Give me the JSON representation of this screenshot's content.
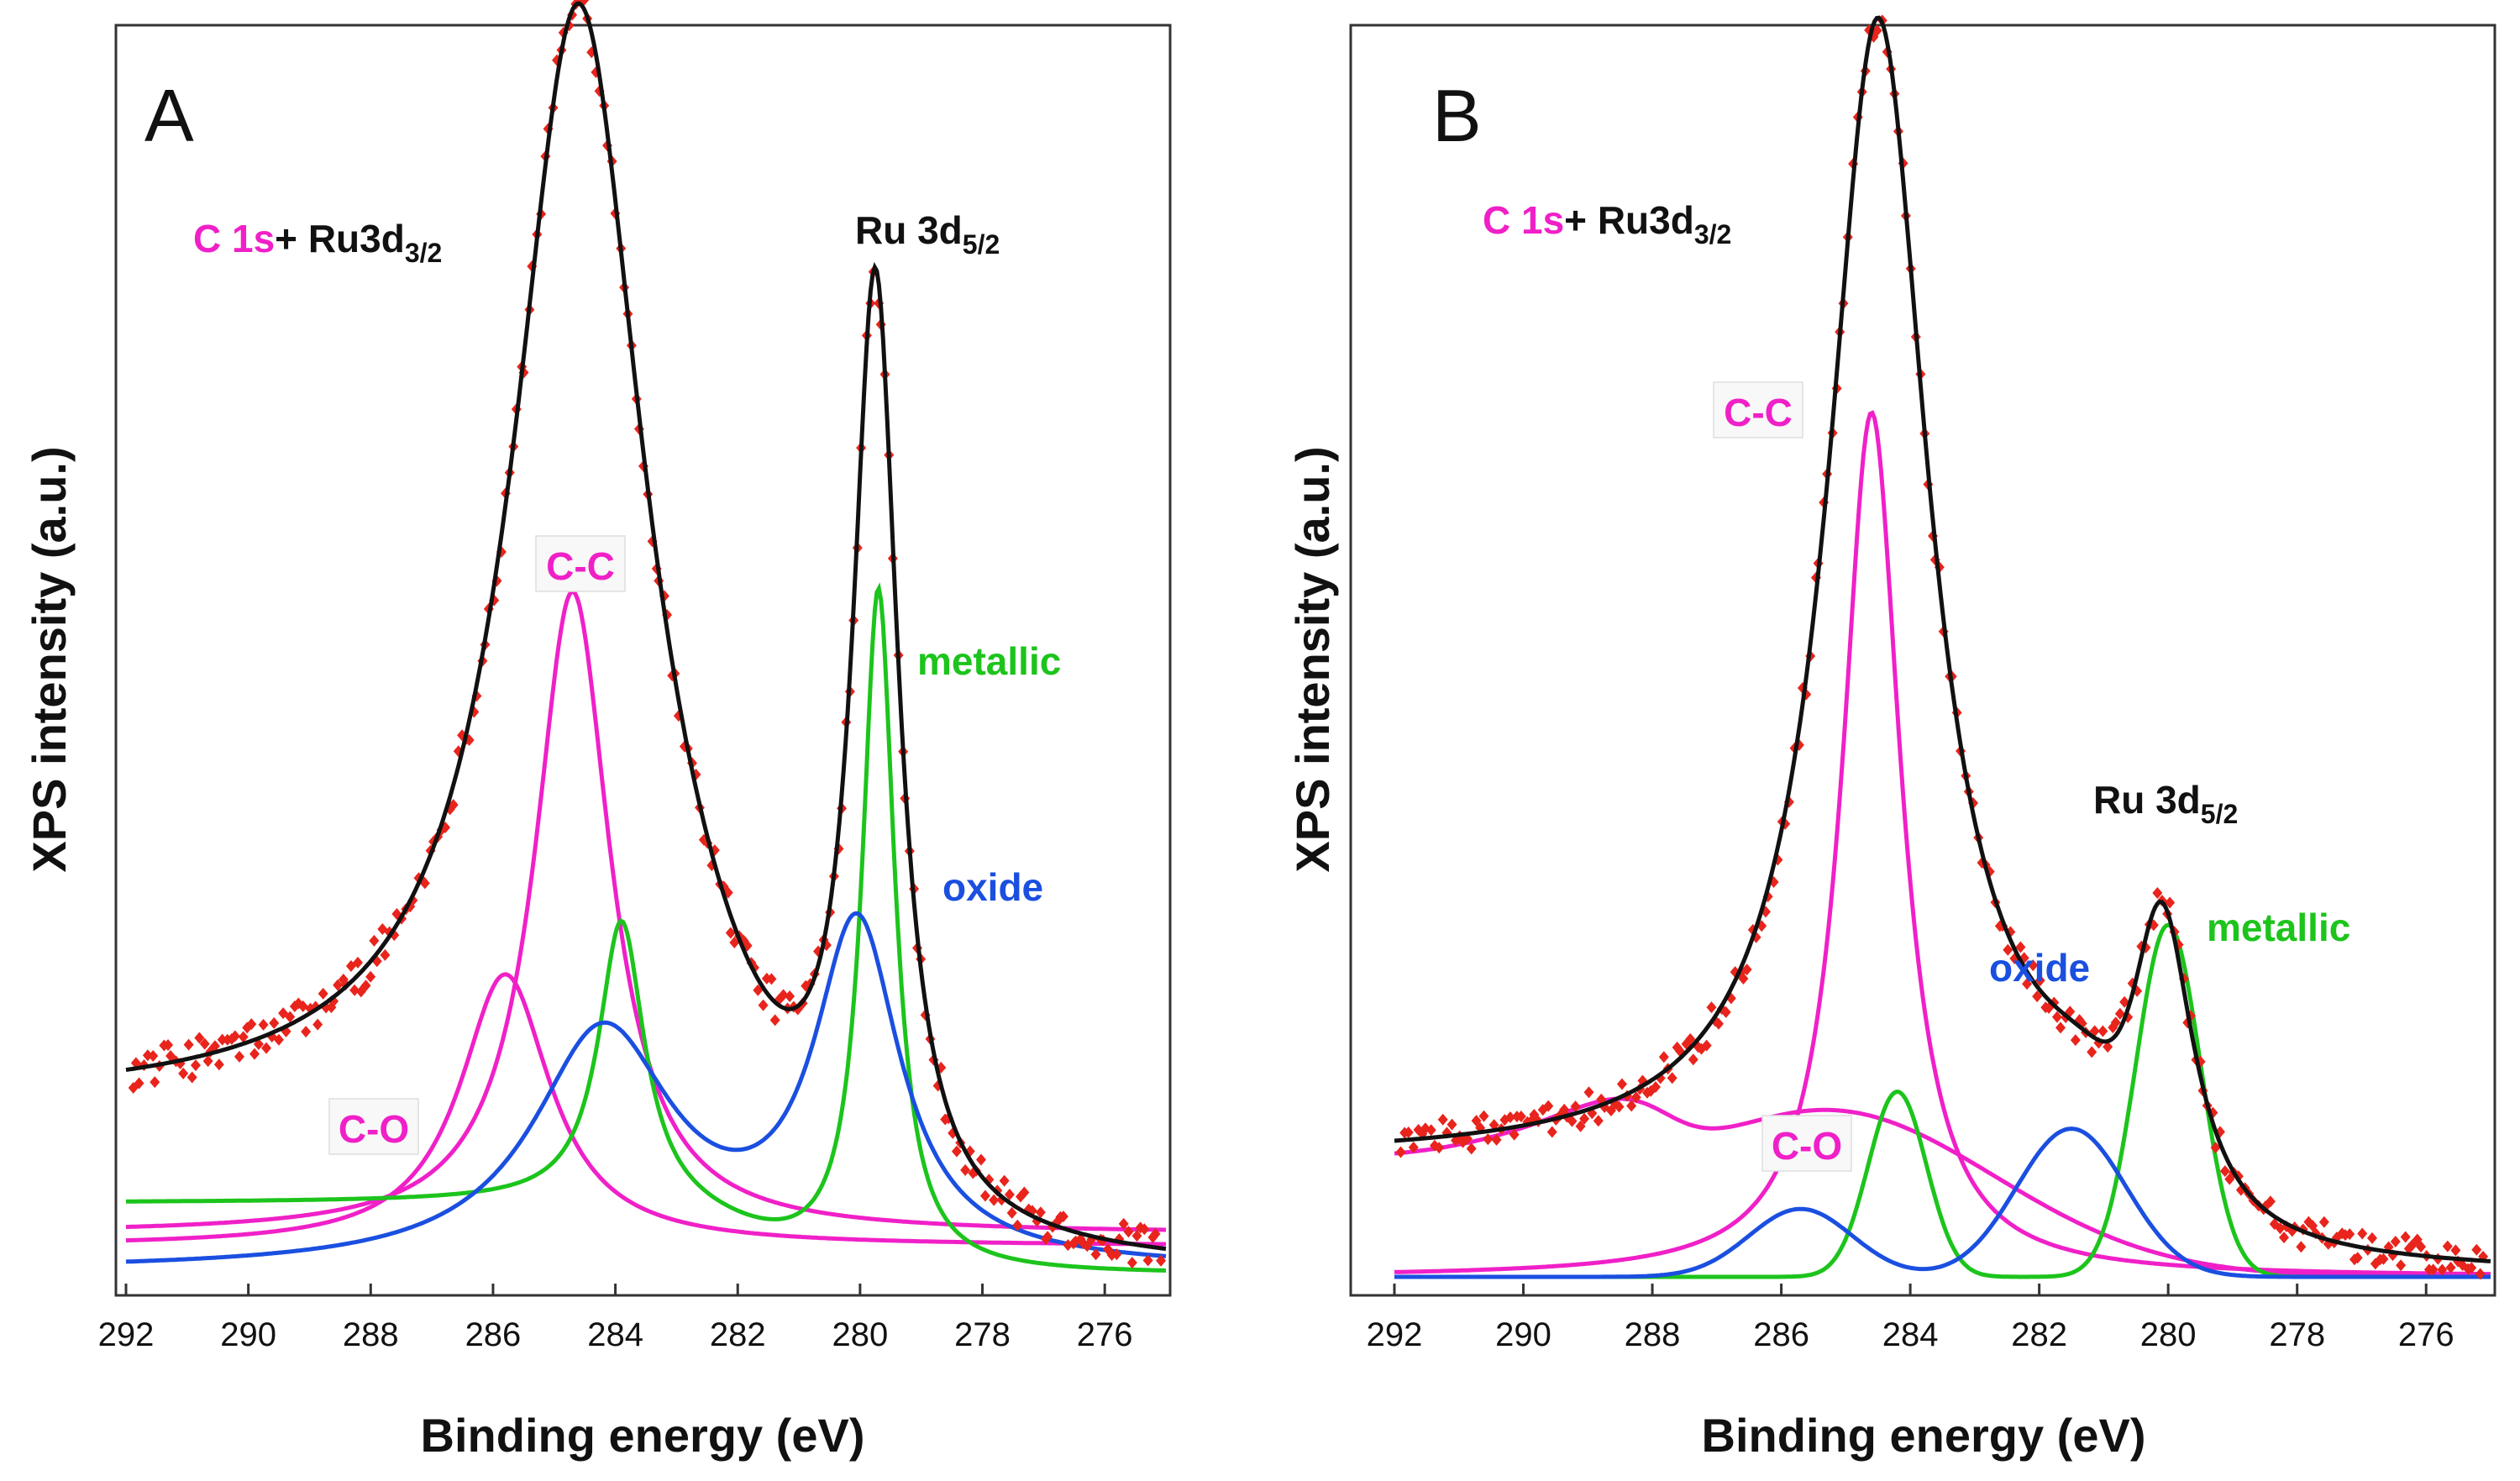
{
  "colors": {
    "data_points": "#e8241c",
    "envelope": "#111111",
    "carbon": "#f020c8",
    "metallic": "#1cc41c",
    "oxide": "#1a4fe0"
  },
  "chart_data": [
    {
      "type": "line",
      "panel_label": "A",
      "xlabel": "Binding energy (eV)",
      "ylabel": "XPS intensity (a.u.)",
      "xlim": [
        292,
        275
      ],
      "x_ticks": [
        "292",
        "290",
        "288",
        "286",
        "284",
        "282",
        "280",
        "278",
        "276"
      ],
      "ylim": [
        0,
        100
      ],
      "x_reversed": true,
      "annotations": {
        "c1s_part": "C 1s",
        "c1s_rest": "+ Ru3d",
        "c1s_sub": "3/2",
        "ru_main": "Ru 3d",
        "ru_sub": "5/2",
        "cc": "C-C",
        "co": "C-O",
        "metallic": "metallic",
        "oxide": "oxide"
      },
      "series": [
        {
          "name": "C-C",
          "color_key": "carbon",
          "baseline": 3.5,
          "components": [
            {
              "center": 284.7,
              "height": 52,
              "width": 0.75,
              "shape": "lorentz"
            }
          ]
        },
        {
          "name": "C-O",
          "color_key": "carbon",
          "baseline": 2.5,
          "components": [
            {
              "center": 285.8,
              "height": 22,
              "width": 0.9,
              "shape": "lorentz"
            }
          ]
        },
        {
          "name": "metallic",
          "color_key": "metallic",
          "baseline": 7.8,
          "step": {
            "center": 282.0,
            "width": 0.8,
            "after": 6.0,
            "before": 0.2
          },
          "components": [
            {
              "center": 283.9,
              "height": 23,
              "width": 0.45,
              "shape": "lorentz"
            },
            {
              "center": 279.7,
              "height": 55,
              "width": 0.32,
              "shape": "lorentz"
            }
          ]
        },
        {
          "name": "oxide",
          "color_key": "oxide",
          "baseline": 0.5,
          "components": [
            {
              "center": 284.2,
              "height": 19,
              "width": 1.4,
              "shape": "lorentz"
            },
            {
              "center": 280.05,
              "height": 27,
              "width": 0.85,
              "shape": "lorentz"
            }
          ]
        },
        {
          "name": "Envelope",
          "color_key": "envelope",
          "baseline": 14.0,
          "step": {
            "center": 282.0,
            "width": 0.8,
            "after": 14.0,
            "before": 0.0
          },
          "components": [
            {
              "center": 284.6,
              "height": 89,
              "width": 1.3,
              "shape": "lorentz"
            },
            {
              "center": 279.75,
              "height": 75,
              "width": 0.45,
              "shape": "lorentz"
            }
          ]
        }
      ],
      "scatter": {
        "name": "Data",
        "x_range": [
          291.9,
          275.1
        ],
        "count": 260,
        "noise": 1.6
      }
    },
    {
      "type": "line",
      "panel_label": "B",
      "xlabel": "Binding energy (eV)",
      "ylabel": "XPS intensity (a.u.)",
      "xlim": [
        292,
        275
      ],
      "x_ticks": [
        "292",
        "290",
        "288",
        "286",
        "284",
        "282",
        "280",
        "278",
        "276"
      ],
      "ylim": [
        0,
        100
      ],
      "x_reversed": true,
      "annotations": {
        "c1s_part": "C 1s",
        "c1s_rest": "+ Ru3d",
        "c1s_sub": "3/2",
        "ru_main": "Ru 3d",
        "ru_sub": "5/2",
        "cc": "C-C",
        "co": "C-O",
        "metallic": "metallic",
        "oxide": "oxide"
      },
      "series": [
        {
          "name": "C-C",
          "color_key": "carbon",
          "baseline": 0.3,
          "step": {
            "center": 283.6,
            "width": 0.4,
            "after": 0.0,
            "before": 0.0
          },
          "components": [
            {
              "center": 284.6,
              "height": 70,
              "width": 0.55,
              "shape": "lorentz"
            }
          ]
        },
        {
          "name": "C-O",
          "color_key": "carbon",
          "baseline": 0.2,
          "step": {
            "center": 287.8,
            "width": 0.4,
            "after": 9.5,
            "before": 0.0
          },
          "components": [
            {
              "center": 285.3,
              "height": 13.5,
              "width": 2.6,
              "shape": "gauss"
            }
          ]
        },
        {
          "name": "metallic",
          "color_key": "metallic",
          "baseline": 0.0,
          "components": [
            {
              "center": 284.2,
              "height": 15,
              "width": 0.45,
              "shape": "gauss"
            },
            {
              "center": 280.0,
              "height": 28.5,
              "width": 0.5,
              "shape": "gauss"
            }
          ]
        },
        {
          "name": "oxide",
          "color_key": "oxide",
          "baseline": 0.0,
          "components": [
            {
              "center": 285.7,
              "height": 5.5,
              "width": 0.8,
              "shape": "gauss"
            },
            {
              "center": 281.5,
              "height": 12,
              "width": 0.85,
              "shape": "gauss"
            }
          ]
        },
        {
          "name": "Envelope",
          "color_key": "envelope",
          "baseline": 9.5,
          "step": {
            "center": 281.0,
            "width": 0.25,
            "after": 9.5,
            "before": 0.0
          },
          "components": [
            {
              "center": 284.5,
              "height": 92,
              "width": 0.95,
              "shape": "lorentz"
            },
            {
              "center": 280.1,
              "height": 26,
              "width": 0.6,
              "shape": "lorentz"
            }
          ]
        }
      ],
      "scatter": {
        "name": "Data",
        "x_range": [
          291.9,
          275.1
        ],
        "count": 260,
        "noise": 1.4
      }
    }
  ]
}
